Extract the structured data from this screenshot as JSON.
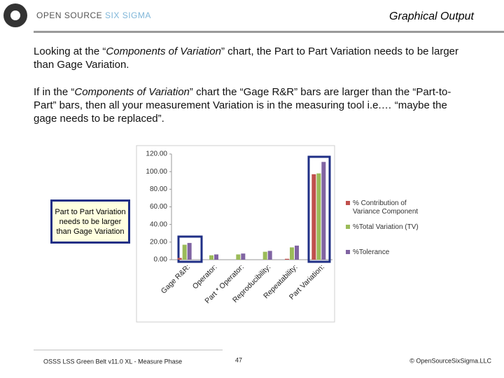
{
  "header": {
    "logo_text": "OPEN SOURCE",
    "logo_accent": "SIX SIGMA",
    "title": "Graphical Output"
  },
  "body": {
    "paragraphs": [
      [
        "Looking at the “",
        "Components of Variation",
        "” chart, the Part to Part Variation needs to be larger than Gage Variation."
      ],
      [
        "If in the “",
        "Components of Variation",
        "” chart the “Gage R&R” bars are larger than the “Part-to-Part” bars, then all your measurement Variation is in the measuring tool i.e.… “maybe the gage needs to be replaced”."
      ]
    ]
  },
  "callout": "Part to Part Variation needs to be larger than Gage Variation",
  "chart_data": {
    "type": "bar",
    "categories": [
      "Gage R&R:",
      "Operator:",
      "Part * Operator:",
      "Reproducibility:",
      "Repeatability:",
      "Part Variation:"
    ],
    "series": [
      {
        "name": "% Contribution of Variance Component",
        "color": "#c0504d",
        "values": [
          2,
          0,
          0,
          0,
          1,
          97
        ]
      },
      {
        "name": "%Total Variation (TV)",
        "color": "#9bbb59",
        "values": [
          17,
          5,
          6,
          9,
          14,
          98
        ]
      },
      {
        "name": "%Tolerance",
        "color": "#8064a2",
        "values": [
          19,
          6,
          7,
          10,
          16,
          111
        ]
      }
    ],
    "ylim": [
      0,
      120
    ],
    "yticks": [
      {
        "value": 0,
        "label": "0.00"
      },
      {
        "value": 20,
        "label": "20.00"
      },
      {
        "value": 40,
        "label": "40.00"
      },
      {
        "value": 60,
        "label": "60.00"
      },
      {
        "value": 80,
        "label": "80.00"
      },
      {
        "value": 100,
        "label": "100.00"
      },
      {
        "value": 120,
        "label": "120.00"
      }
    ],
    "grid": false,
    "legend": "right"
  },
  "footer": {
    "left": "OSSS LSS Green Belt v11.0 XL - Measure Phase",
    "page": "47",
    "right": "© OpenSourceSixSigma.LLC"
  }
}
